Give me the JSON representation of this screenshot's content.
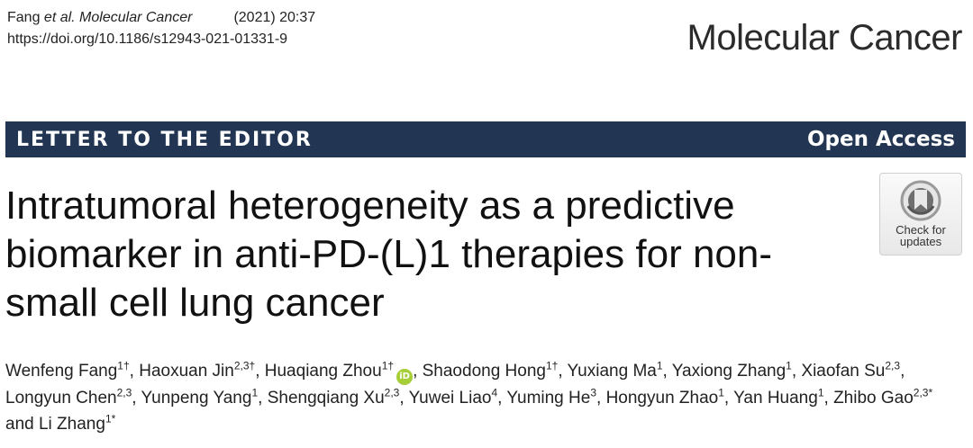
{
  "header": {
    "citation_authors": "Fang ",
    "citation_etal": "et al. Molecular Cancer",
    "citation_year": "(2021) 20:37",
    "doi": "https://doi.org/10.1186/s12943-021-01331-9",
    "journal_name": "Molecular Cancer"
  },
  "banner": {
    "article_type": "LETTER TO THE EDITOR",
    "access": "Open Access"
  },
  "title": {
    "line1": "Intratumoral heterogeneity as a predictive",
    "line2": "biomarker in anti-PD-(L)1 therapies for non-",
    "line3": "small cell lung cancer"
  },
  "badge": {
    "line1": "Check for",
    "line2": "updates"
  },
  "orcid_label": "iD",
  "authors": [
    {
      "name": "Wenfeng Fang",
      "sup": "1†",
      "sep": ", "
    },
    {
      "name": "Haoxuan Jin",
      "sup": "2,3†",
      "sep": ", "
    },
    {
      "name": "Huaqiang Zhou",
      "sup": "1†",
      "sep": ", ",
      "orcid": true
    },
    {
      "name": "Shaodong Hong",
      "sup": "1†",
      "sep": ", "
    },
    {
      "name": "Yuxiang Ma",
      "sup": "1",
      "sep": ", "
    },
    {
      "name": "Yaxiong Zhang",
      "sup": "1",
      "sep": ", "
    },
    {
      "name": "Xiaofan Su",
      "sup": "2,3",
      "sep": ", "
    },
    {
      "name": "Longyun Chen",
      "sup": "2,3",
      "sep": ", "
    },
    {
      "name": "Yunpeng Yang",
      "sup": "1",
      "sep": ", "
    },
    {
      "name": "Shengqiang Xu",
      "sup": "2,3",
      "sep": ", "
    },
    {
      "name": "Yuwei Liao",
      "sup": "4",
      "sep": ", "
    },
    {
      "name": "Yuming He",
      "sup": "3",
      "sep": ", "
    },
    {
      "name": "Hongyun Zhao",
      "sup": "1",
      "sep": ", "
    },
    {
      "name": "Yan Huang",
      "sup": "1",
      "sep": ", "
    },
    {
      "name": "Zhibo Gao",
      "sup": "2,3*",
      "sep": " and "
    },
    {
      "name": "Li Zhang",
      "sup": "1*",
      "sep": ""
    }
  ],
  "colors": {
    "banner_bg": "#223552",
    "orcid_green": "#a6ce39"
  }
}
